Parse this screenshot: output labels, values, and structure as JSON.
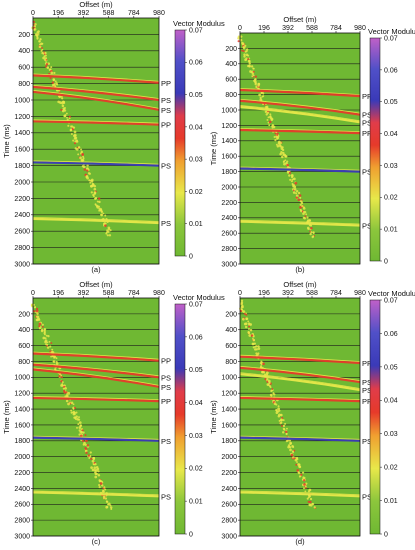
{
  "figure": {
    "colors": {
      "background": "#6fb833",
      "gridline": "#1c1c1c",
      "event_low": "#e8e84a",
      "event_mid": "#e63a2a",
      "event_high": "#3a3ab8",
      "event_peak": "#c060c8"
    }
  },
  "chart_data": [
    {
      "type": "heatmap",
      "panel_label": "(a)",
      "xlabel": "Offset (m)",
      "ylabel": "Time (ms)",
      "colorbar_title": "Vector Modulus",
      "x_ticks": [
        0,
        196,
        392,
        588,
        784,
        980
      ],
      "y_ticks": [
        200,
        400,
        600,
        800,
        1000,
        1200,
        1400,
        1600,
        1800,
        2000,
        2200,
        2400,
        2600,
        2800,
        3000
      ],
      "xlim": [
        0,
        980
      ],
      "ylim": [
        0,
        3000
      ],
      "colorbar_ticks": [
        0,
        0.01,
        0.02,
        0.03,
        0.04,
        0.05,
        0.06,
        0.07
      ],
      "colorbar_tick_labels": [
        "0",
        "0.01",
        "0.02",
        "0.03",
        "0.04",
        "0.05",
        "0.06",
        "0.07"
      ],
      "events": [
        {
          "label": "PP",
          "t0": 700,
          "t_end": 790,
          "amplitude": 0.035
        },
        {
          "label": "PS",
          "t0": 840,
          "t_end": 1000,
          "amplitude": 0.03
        },
        {
          "label": "PS",
          "t0": 900,
          "t_end": 1120,
          "amplitude": 0.03
        },
        {
          "label": "PP",
          "t0": 1260,
          "t_end": 1300,
          "amplitude": 0.035
        },
        {
          "label": "PS",
          "t0": 1760,
          "t_end": 1800,
          "amplitude": 0.05
        },
        {
          "label": "PS",
          "t0": 2450,
          "t_end": 2500,
          "amplitude": 0.02
        }
      ],
      "diagonal_noise": true
    },
    {
      "type": "heatmap",
      "panel_label": "(b)",
      "xlabel": "Offset (m)",
      "ylabel": "Time (ms)",
      "colorbar_title": "Vector Modulus",
      "x_ticks": [
        0,
        196,
        392,
        588,
        784,
        980
      ],
      "y_ticks": [
        200,
        400,
        600,
        800,
        1000,
        1200,
        1400,
        1600,
        1800,
        2000,
        2200,
        2400,
        2600,
        2800,
        3000
      ],
      "xlim": [
        0,
        980
      ],
      "ylim": [
        0,
        3000
      ],
      "colorbar_ticks": [
        0,
        0.01,
        0.02,
        0.03,
        0.04,
        0.05,
        0.06,
        0.07
      ],
      "colorbar_tick_labels": [
        "0",
        "0.01",
        "0.02",
        "0.03",
        "0.04",
        "0.05",
        "0.06",
        "0.07"
      ],
      "events": [
        {
          "label": "PP",
          "t0": 740,
          "t_end": 820,
          "amplitude": 0.03
        },
        {
          "label": "PS",
          "t0": 880,
          "t_end": 1060,
          "amplitude": 0.03
        },
        {
          "label": "PS",
          "t0": 960,
          "t_end": 1160,
          "amplitude": 0.025
        },
        {
          "label": "PP",
          "t0": 1260,
          "t_end": 1300,
          "amplitude": 0.035
        },
        {
          "label": "PS",
          "t0": 1760,
          "t_end": 1800,
          "amplitude": 0.05
        },
        {
          "label": "PS",
          "t0": 2450,
          "t_end": 2500,
          "amplitude": 0.02
        }
      ],
      "diagonal_noise": true
    },
    {
      "type": "heatmap",
      "panel_label": "(c)",
      "xlabel": "Offset (m)",
      "ylabel": "Time (ms)",
      "colorbar_title": "Vector Modulus",
      "x_ticks": [
        0,
        196,
        392,
        588,
        784,
        980
      ],
      "y_ticks": [
        200,
        400,
        600,
        800,
        1000,
        1200,
        1400,
        1600,
        1800,
        2000,
        2200,
        2400,
        2600,
        2800,
        3000
      ],
      "xlim": [
        0,
        980
      ],
      "ylim": [
        0,
        3000
      ],
      "colorbar_ticks": [
        0,
        0.01,
        0.02,
        0.03,
        0.04,
        0.05,
        0.06,
        0.07
      ],
      "colorbar_tick_labels": [
        "0",
        "0.01",
        "0.02",
        "0.03",
        "0.04",
        "0.05",
        "0.06",
        "0.07"
      ],
      "events": [
        {
          "label": "PP",
          "t0": 700,
          "t_end": 790,
          "amplitude": 0.035
        },
        {
          "label": "PS",
          "t0": 840,
          "t_end": 1000,
          "amplitude": 0.03
        },
        {
          "label": "PS",
          "t0": 900,
          "t_end": 1120,
          "amplitude": 0.03
        },
        {
          "label": "PP",
          "t0": 1260,
          "t_end": 1300,
          "amplitude": 0.035
        },
        {
          "label": "PS",
          "t0": 1760,
          "t_end": 1800,
          "amplitude": 0.05
        },
        {
          "label": "PS",
          "t0": 2450,
          "t_end": 2500,
          "amplitude": 0.02
        }
      ],
      "diagonal_noise": true
    },
    {
      "type": "heatmap",
      "panel_label": "(d)",
      "xlabel": "Offset (m)",
      "ylabel": "Time (ms)",
      "colorbar_title": "Vector Modulus",
      "x_ticks": [
        0,
        196,
        392,
        588,
        784,
        980
      ],
      "y_ticks": [
        200,
        400,
        600,
        800,
        1000,
        1200,
        1400,
        1600,
        1800,
        2000,
        2200,
        2400,
        2600,
        2800,
        3000
      ],
      "xlim": [
        0,
        980
      ],
      "ylim": [
        0,
        3000
      ],
      "colorbar_ticks": [
        0,
        0.01,
        0.02,
        0.03,
        0.04,
        0.05,
        0.06,
        0.07
      ],
      "colorbar_tick_labels": [
        "0",
        "0.01",
        "0.02",
        "0.03",
        "0.04",
        "0.05",
        "0.06",
        "0.07"
      ],
      "events": [
        {
          "label": "PP",
          "t0": 740,
          "t_end": 820,
          "amplitude": 0.03
        },
        {
          "label": "PS",
          "t0": 880,
          "t_end": 1060,
          "amplitude": 0.03
        },
        {
          "label": "PS",
          "t0": 960,
          "t_end": 1160,
          "amplitude": 0.025
        },
        {
          "label": "PP",
          "t0": 1260,
          "t_end": 1300,
          "amplitude": 0.03
        },
        {
          "label": "PS",
          "t0": 1760,
          "t_end": 1800,
          "amplitude": 0.045
        },
        {
          "label": "PS",
          "t0": 2450,
          "t_end": 2500,
          "amplitude": 0.02
        }
      ],
      "diagonal_noise": true
    }
  ]
}
